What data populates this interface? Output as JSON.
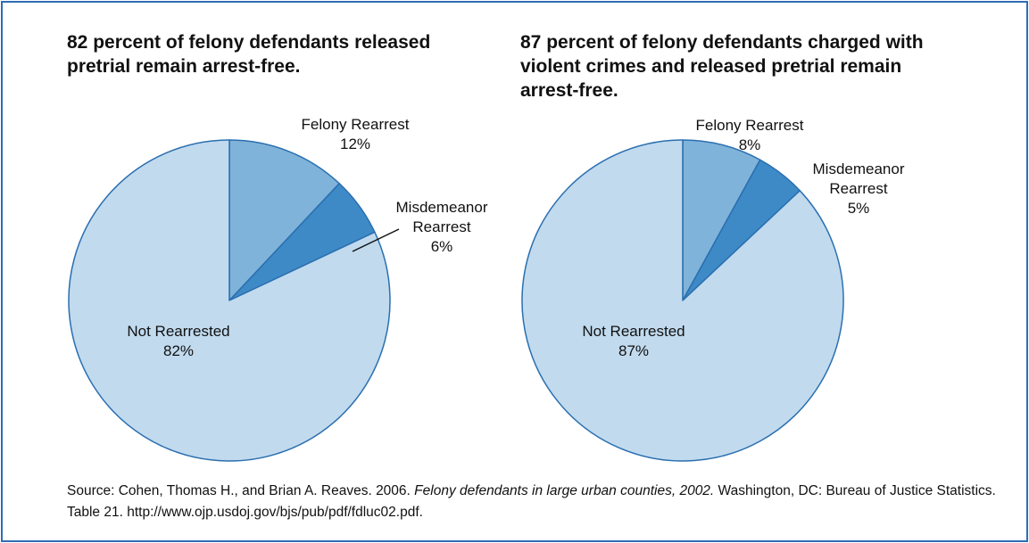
{
  "chart_data": [
    {
      "type": "pie",
      "title": "82 percent of felony defendants released pretrial remain arrest-free.",
      "categories": [
        "Felony Rearrest",
        "Misdemeanor Rearrest",
        "Not Rearrested"
      ],
      "values": [
        12,
        6,
        82
      ],
      "value_labels": [
        "12%",
        "6%",
        "82%"
      ],
      "colors": [
        "#80b3d9",
        "#3e8ac7",
        "#c1daee"
      ]
    },
    {
      "type": "pie",
      "title": "87 percent of felony defendants charged with violent crimes and released pretrial remain arrest-free.",
      "categories": [
        "Felony Rearrest",
        "Misdemeanor Rearrest",
        "Not Rearrested"
      ],
      "values": [
        8,
        5,
        87
      ],
      "value_labels": [
        "8%",
        "5%",
        "87%"
      ],
      "colors": [
        "#80b3d9",
        "#3e8ac7",
        "#c1daee"
      ]
    }
  ],
  "source": {
    "prefix": "Source: Cohen, Thomas H., and Brian A. Reaves. 2006. ",
    "title": "Felony defendants in large urban counties, 2002.",
    "suffix": " Washington, DC: Bureau of Justice Statistics. Table 21. http://www.ojp.usdoj.gov/bjs/pub/pdf/fdluc02.pdf."
  }
}
